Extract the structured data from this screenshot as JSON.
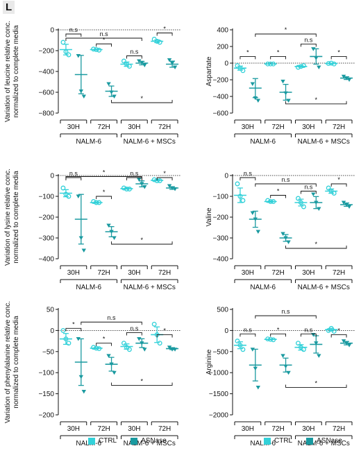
{
  "panel_label": "L",
  "legend": {
    "items": [
      {
        "label": "CTRL",
        "color": "#33d1d9"
      },
      {
        "label": "ASNase",
        "color": "#1a9aa0"
      }
    ]
  },
  "chart_data": [
    {
      "type": "scatter",
      "ylabel": "Variation of leucine relative conc. normalized to complete media",
      "ylim": [
        -800,
        0
      ],
      "yticks": [
        0,
        -200,
        -400,
        -600,
        -800
      ],
      "conditions": [
        "30H",
        "72H",
        "30H",
        "72H"
      ],
      "groups": [
        "NALM-6",
        "NALM-6 + MSCs"
      ],
      "series": [
        {
          "name": "CTRL",
          "values": [
            [
              -120,
              -210,
              -240
            ],
            [
              -185,
              -190,
              -195
            ],
            [
              -300,
              -330,
              -350
            ],
            [
              -90,
              -110,
              -120
            ]
          ],
          "means": [
            -190,
            -190,
            -330,
            -110
          ]
        },
        {
          "name": "ASNase",
          "values": [
            [
              -250,
              -590,
              -640
            ],
            [
              -520,
              -600,
              -640
            ],
            [
              -300,
              -315,
              -340
            ],
            [
              -290,
              -320,
              -360
            ]
          ],
          "means": [
            -430,
            -590,
            -320,
            -330
          ]
        }
      ],
      "annotations": [
        {
          "label": "n.s",
          "from": 0,
          "to": 1,
          "level": -40
        },
        {
          "label": "n.s",
          "from": 0,
          "to": 5,
          "level": -80
        },
        {
          "label": "*",
          "from": 2,
          "to": 3,
          "level": -135
        },
        {
          "label": "n.s",
          "from": 4,
          "to": 5,
          "level": -250
        },
        {
          "label": "*",
          "from": 6,
          "to": 7,
          "level": -30
        },
        {
          "label": "*",
          "from": 3,
          "to": 7,
          "level": -700,
          "below": true
        }
      ]
    },
    {
      "type": "scatter",
      "ylabel": "Aspartate",
      "ylim": [
        -600,
        400
      ],
      "yticks": [
        400,
        200,
        0,
        -200,
        -400,
        -600
      ],
      "conditions": [
        "30H",
        "72H",
        "30H",
        "72H"
      ],
      "groups": [
        "NALM-6",
        "NALM-6 + MSCs"
      ],
      "series": [
        {
          "name": "CTRL",
          "values": [
            [
              -30,
              -60,
              -90
            ],
            [
              -10,
              -10,
              -10
            ],
            [
              -50,
              -40,
              -30
            ],
            [
              -5,
              0,
              -10
            ]
          ],
          "means": [
            -60,
            -10,
            -40,
            -5
          ]
        },
        {
          "name": "ASNase",
          "values": [
            [
              -250,
              -420,
              -450
            ],
            [
              -220,
              -360,
              -450
            ],
            [
              170,
              60,
              -50
            ],
            [
              -160,
              -180,
              -200
            ]
          ],
          "means": [
            -300,
            -350,
            80,
            -180
          ]
        }
      ],
      "annotations": [
        {
          "label": "*",
          "from": 0,
          "to": 1,
          "level": 80
        },
        {
          "label": "*",
          "from": 2,
          "to": 3,
          "level": 80
        },
        {
          "label": "*",
          "from": 1,
          "to": 5,
          "level": 350
        },
        {
          "label": "n.s",
          "from": 4,
          "to": 5,
          "level": 230
        },
        {
          "label": "*",
          "from": 6,
          "to": 7,
          "level": 80
        },
        {
          "label": "*",
          "from": 3,
          "to": 7,
          "level": -490,
          "below": true
        }
      ]
    },
    {
      "type": "scatter",
      "ylabel": "Variation of lysine relative conc. normalized to complete media",
      "ylim": [
        -400,
        0
      ],
      "yticks": [
        0,
        -100,
        -200,
        -300,
        -400
      ],
      "conditions": [
        "30H",
        "72H",
        "30H",
        "72H"
      ],
      "groups": [
        "NALM-6",
        "NALM-6 + MSCs"
      ],
      "series": [
        {
          "name": "CTRL",
          "values": [
            [
              -60,
              -90,
              -100
            ],
            [
              -125,
              -130,
              -130
            ],
            [
              -60,
              -65,
              -65
            ],
            [
              -20,
              -25,
              -25
            ]
          ],
          "means": [
            -85,
            -130,
            -63,
            -23
          ]
        },
        {
          "name": "ASNase",
          "values": [
            [
              -100,
              -300,
              -360
            ],
            [
              -240,
              -270,
              -300
            ],
            [
              -20,
              -40,
              -55
            ],
            [
              -50,
              -60,
              -65
            ]
          ],
          "means": [
            -210,
            -270,
            -40,
            -60
          ]
        }
      ],
      "annotations": [
        {
          "label": "n.s",
          "from": 0,
          "to": 1,
          "level": -10
        },
        {
          "label": "*",
          "from": 0,
          "to": 5,
          "level": -5,
          "high": true
        },
        {
          "label": "*",
          "from": 2,
          "to": 3,
          "level": -100
        },
        {
          "label": "n.s",
          "from": 4,
          "to": 5,
          "level": -10
        },
        {
          "label": "*",
          "from": 6,
          "to": 7,
          "level": -10
        },
        {
          "label": "*",
          "from": 3,
          "to": 7,
          "level": -330,
          "below": true
        }
      ]
    },
    {
      "type": "scatter",
      "ylabel": "Valine",
      "ylim": [
        -400,
        0
      ],
      "yticks": [
        0,
        -100,
        -200,
        -300,
        -400
      ],
      "conditions": [
        "30H",
        "72H",
        "30H",
        "72H"
      ],
      "groups": [
        "NALM-6",
        "NALM-6 + MSCs"
      ],
      "series": [
        {
          "name": "CTRL",
          "values": [
            [
              -40,
              -100,
              -120
            ],
            [
              -120,
              -125,
              -125
            ],
            [
              -110,
              -130,
              -150
            ],
            [
              -60,
              -75,
              -85
            ]
          ],
          "means": [
            -95,
            -125,
            -130,
            -75
          ]
        },
        {
          "name": "ASNase",
          "values": [
            [
              -180,
              -210,
              -270
            ],
            [
              -280,
              -300,
              -320
            ],
            [
              -90,
              -130,
              -160
            ],
            [
              -130,
              -140,
              -150
            ]
          ],
          "means": [
            -210,
            -300,
            -130,
            -140
          ]
        }
      ],
      "annotations": [
        {
          "label": "n.s",
          "from": 0,
          "to": 1,
          "level": -10
        },
        {
          "label": "n.s",
          "from": 1,
          "to": 5,
          "level": -40
        },
        {
          "label": "*",
          "from": 2,
          "to": 3,
          "level": -95
        },
        {
          "label": "n.s",
          "from": 4,
          "to": 5,
          "level": -75
        },
        {
          "label": "*",
          "from": 6,
          "to": 7,
          "level": -40
        },
        {
          "label": "*",
          "from": 3,
          "to": 7,
          "level": -350,
          "below": true
        }
      ]
    },
    {
      "type": "scatter",
      "ylabel": "Variation of phenylalanine relative conc. normalized to complete media",
      "ylim": [
        -200,
        50
      ],
      "yticks": [
        50,
        0,
        -50,
        -100,
        -150,
        -200
      ],
      "conditions": [
        "30H",
        "72H",
        "30H",
        "72H"
      ],
      "groups": [
        "NALM-6",
        "NALM-6 + MSCs"
      ],
      "series": [
        {
          "name": "CTRL",
          "values": [
            [
              0,
              -20,
              -30
            ],
            [
              -40,
              -42,
              -43
            ],
            [
              -30,
              -40,
              -45
            ],
            [
              15,
              -10,
              -30
            ]
          ],
          "means": [
            -20,
            -42,
            -38,
            -10
          ]
        },
        {
          "name": "ASNase",
          "values": [
            [
              -20,
              -110,
              -145
            ],
            [
              -60,
              -80,
              -100
            ],
            [
              -20,
              -30,
              -45
            ],
            [
              -40,
              -45,
              -45
            ]
          ],
          "means": [
            -75,
            -80,
            -30,
            -43
          ]
        }
      ],
      "annotations": [
        {
          "label": "*",
          "from": 0,
          "to": 1,
          "level": 5
        },
        {
          "label": "*",
          "from": 2,
          "to": 3,
          "level": -30
        },
        {
          "label": "n.s",
          "from": 1,
          "to": 5,
          "level": 20
        },
        {
          "label": "n.s",
          "from": 4,
          "to": 5,
          "level": -5
        },
        {
          "label": "*",
          "from": 6,
          "to": 7,
          "level": -10
        },
        {
          "label": "*",
          "from": 3,
          "to": 7,
          "level": -130,
          "below": true
        }
      ]
    },
    {
      "type": "scatter",
      "ylabel": "Arginine",
      "ylim": [
        -2000,
        500
      ],
      "yticks": [
        500,
        0,
        -500,
        -1000,
        -1500,
        -2000
      ],
      "conditions": [
        "30H",
        "72H",
        "30H",
        "72H"
      ],
      "groups": [
        "NALM-6",
        "NALM-6 + MSCs"
      ],
      "series": [
        {
          "name": "CTRL",
          "values": [
            [
              -250,
              -350,
              -450
            ],
            [
              -200,
              -210,
              -220
            ],
            [
              -300,
              -400,
              -450
            ],
            [
              0,
              50,
              -20
            ]
          ],
          "means": [
            -350,
            -210,
            -400,
            20
          ]
        },
        {
          "name": "ASNase",
          "values": [
            [
              -450,
              -900,
              -1350
            ],
            [
              -600,
              -850,
              -1000
            ],
            [
              -100,
              -300,
              -600
            ],
            [
              -250,
              -300,
              -350
            ]
          ],
          "means": [
            -820,
            -820,
            -330,
            -300
          ]
        }
      ],
      "annotations": [
        {
          "label": "n.s",
          "from": 0,
          "to": 1,
          "level": -80
        },
        {
          "label": "n.s",
          "from": 1,
          "to": 5,
          "level": 350
        },
        {
          "label": "*",
          "from": 2,
          "to": 3,
          "level": -80
        },
        {
          "label": "n.s",
          "from": 4,
          "to": 5,
          "level": -80
        },
        {
          "label": "*",
          "from": 6,
          "to": 7,
          "level": -100
        },
        {
          "label": "*",
          "from": 3,
          "to": 7,
          "level": -1350,
          "below": true
        }
      ]
    }
  ]
}
